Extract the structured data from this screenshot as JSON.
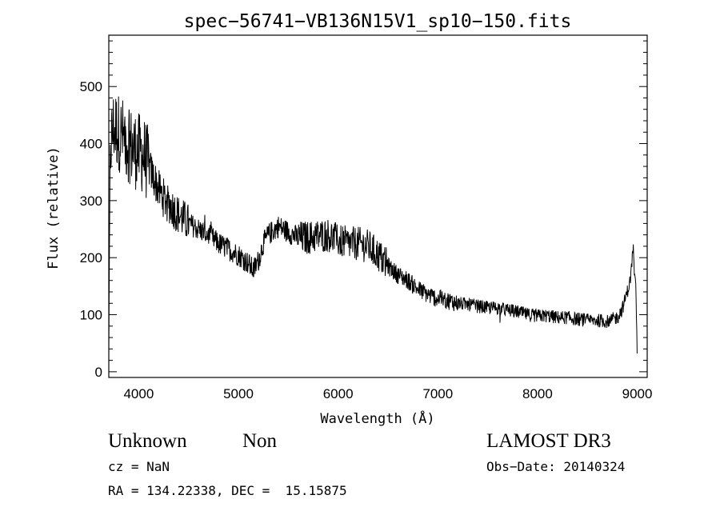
{
  "chart_data": {
    "type": "line",
    "title": "spec−56741−VB136N15V1_sp10−150.fits",
    "xlabel": "Wavelength (Å)",
    "ylabel": "Flux (relative)",
    "xlim": [
      3700,
      9100
    ],
    "ylim": [
      -10,
      590
    ],
    "xticks": [
      4000,
      5000,
      6000,
      7000,
      8000,
      9000
    ],
    "yticks": [
      0,
      100,
      200,
      300,
      400,
      500
    ],
    "grid": false,
    "line_color": "#000000",
    "anchors": {
      "x": [
        3700,
        3710,
        3720,
        3750,
        3800,
        3850,
        3900,
        3950,
        4000,
        4050,
        4100,
        4150,
        4200,
        4250,
        4300,
        4400,
        4500,
        4600,
        4700,
        4800,
        4900,
        5000,
        5100,
        5150,
        5200,
        5250,
        5300,
        5400,
        5450,
        5500,
        5600,
        5700,
        5800,
        5900,
        6000,
        6100,
        6200,
        6300,
        6400,
        6500,
        6600,
        6700,
        6800,
        6900,
        7000,
        7100,
        7200,
        7300,
        7400,
        7500,
        7600,
        7700,
        7800,
        7900,
        8000,
        8100,
        8200,
        8300,
        8400,
        8500,
        8600,
        8700,
        8750,
        8800,
        8850,
        8900,
        8930,
        8960,
        8970,
        8985,
        9000
      ],
      "y": [
        40,
        320,
        400,
        430,
        420,
        410,
        400,
        390,
        385,
        380,
        360,
        340,
        320,
        305,
        295,
        275,
        260,
        250,
        240,
        225,
        215,
        205,
        190,
        178,
        195,
        225,
        240,
        255,
        250,
        245,
        235,
        235,
        238,
        240,
        230,
        225,
        225,
        220,
        205,
        185,
        170,
        160,
        145,
        135,
        128,
        125,
        120,
        118,
        115,
        112,
        112,
        108,
        105,
        100,
        98,
        98,
        95,
        95,
        92,
        90,
        90,
        88,
        92,
        95,
        110,
        140,
        160,
        220,
        175,
        150,
        30
      ]
    }
  },
  "info": {
    "object_class": "Unknown",
    "subclass": "Non",
    "survey": "LAMOST DR3",
    "cz": "cz = NaN",
    "obs_date": "Obs−Date: 20140324",
    "coords": "RA = 134.22338, DEC =  15.15875"
  }
}
